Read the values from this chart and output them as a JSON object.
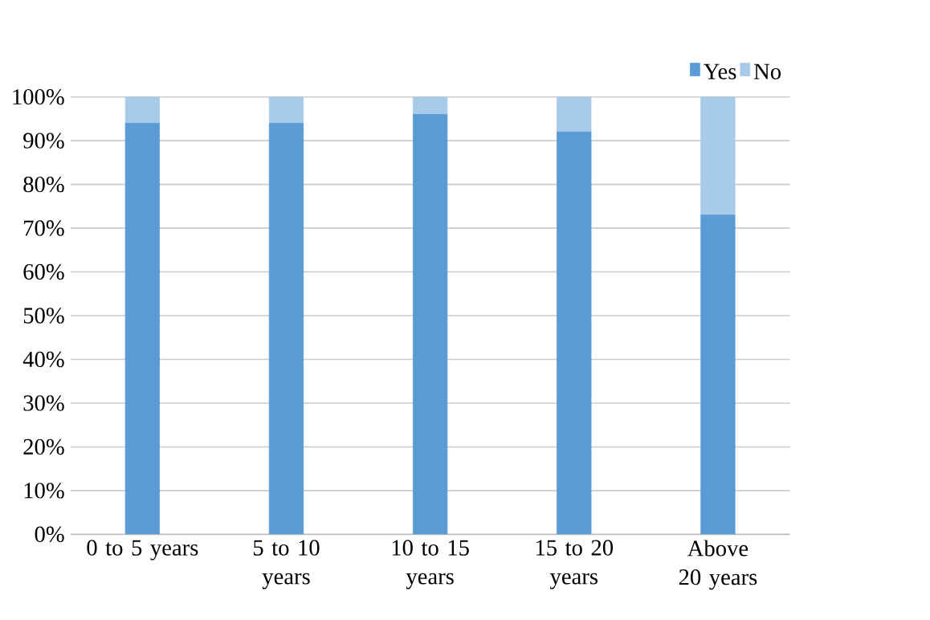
{
  "chart_data": {
    "type": "bar",
    "stacked": true,
    "categories": [
      "0 to 5 years",
      "5 to 10 years",
      "10 to 15 years",
      "15 to 20 years",
      "Above 20 years"
    ],
    "series": [
      {
        "name": "Yes",
        "color": "#5b9bd5",
        "values": [
          94,
          94,
          96,
          92,
          73
        ]
      },
      {
        "name": "No",
        "color": "#a9cbea",
        "values": [
          6,
          6,
          4,
          8,
          27
        ]
      }
    ],
    "ylim": [
      0,
      100
    ],
    "yticks": [
      {
        "value": 0,
        "label": "0%"
      },
      {
        "value": 10,
        "label": "10%"
      },
      {
        "value": 20,
        "label": "20%"
      },
      {
        "value": 30,
        "label": "30%"
      },
      {
        "value": 40,
        "label": "40%"
      },
      {
        "value": 50,
        "label": "50%"
      },
      {
        "value": 60,
        "label": "60%"
      },
      {
        "value": 70,
        "label": "70%"
      },
      {
        "value": 80,
        "label": "80%"
      },
      {
        "value": 90,
        "label": "90%"
      },
      {
        "value": 100,
        "label": "100%"
      }
    ],
    "grid": "y",
    "legend": "top right"
  }
}
